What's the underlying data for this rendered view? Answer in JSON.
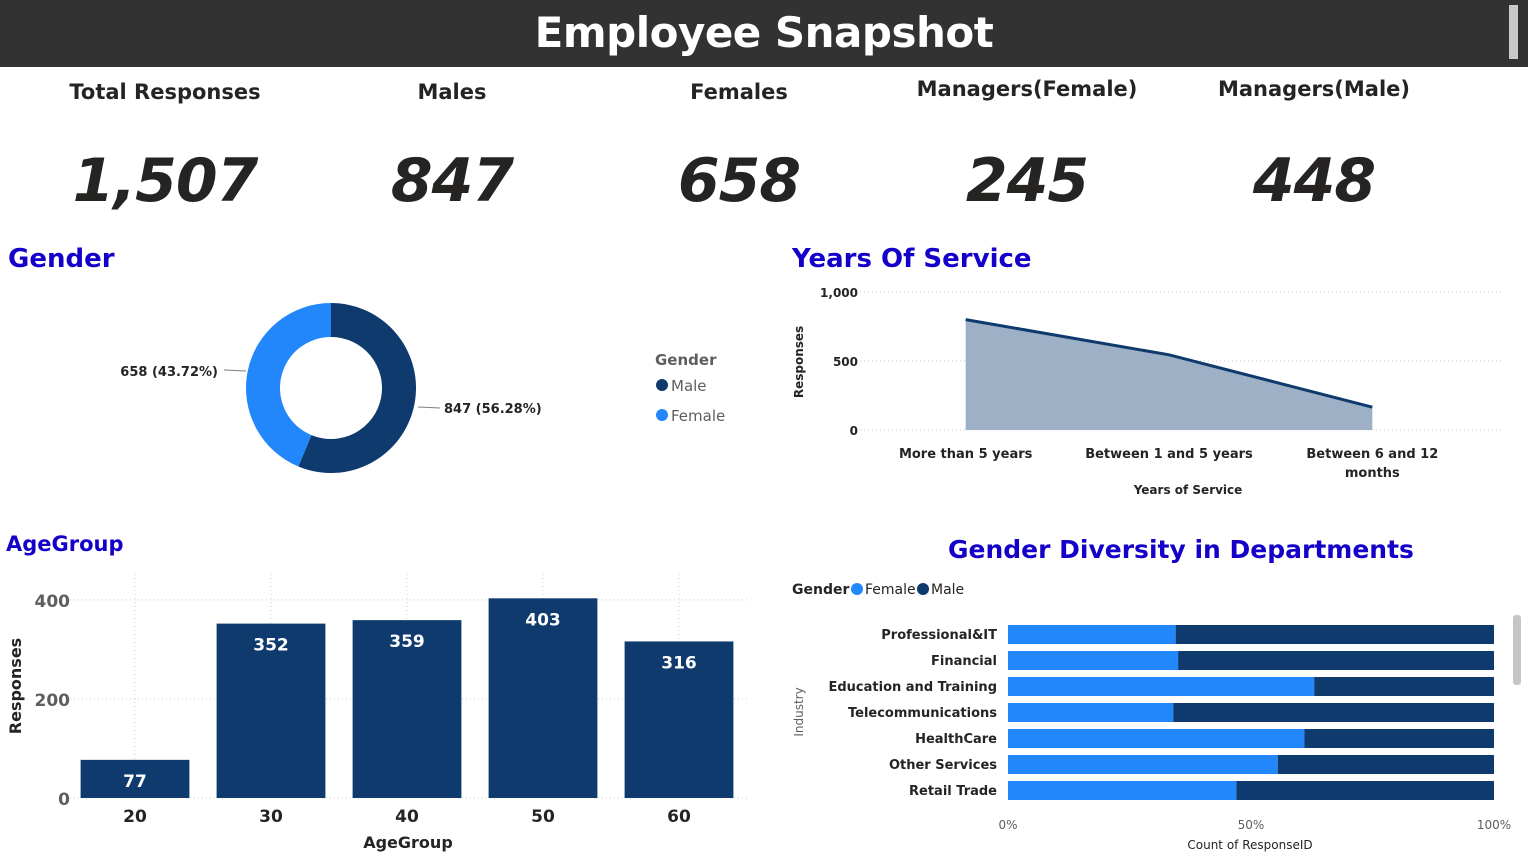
{
  "header": {
    "title": "Employee Snapshot"
  },
  "kpis": [
    {
      "label": "Total Responses",
      "value": "1,507"
    },
    {
      "label": "Males",
      "value": "847"
    },
    {
      "label": "Females",
      "value": "658"
    },
    {
      "label": "Managers(Female)",
      "value": "245"
    },
    {
      "label": "Managers(Male)",
      "value": "448"
    }
  ],
  "gender": {
    "title": "Gender",
    "legend_title": "Gender",
    "male_label": "Male",
    "female_label": "Female",
    "male_value_label": "847 (56.28%)",
    "female_value_label": "658 (43.72%)"
  },
  "years_of_service": {
    "title": "Years Of Service"
  },
  "agegroup": {
    "title": "AgeGroup"
  },
  "diversity": {
    "title": "Gender Diversity in Departments",
    "legend_title": "Gender",
    "female_label": "Female",
    "male_label": "Male"
  },
  "colors": {
    "male": "#0f3a6e",
    "female": "#2187fb",
    "area_fill": "#9eb0c6",
    "title_blue": "#1400c8",
    "header_bg": "#323232"
  },
  "chart_data": [
    {
      "id": "gender",
      "type": "pie",
      "labels": [
        "Male",
        "Female"
      ],
      "values": [
        847,
        658
      ],
      "percent": [
        56.28,
        43.72
      ],
      "title": "Gender",
      "legend_position": "right"
    },
    {
      "id": "years_of_service",
      "type": "area",
      "categories": [
        "More than 5 years",
        "Between 1 and 5 years",
        "Between 6 and 12 months"
      ],
      "values": [
        800,
        545,
        165
      ],
      "title": "Years Of Service",
      "xlabel": "Years of Service",
      "ylabel": "Responses",
      "yticks": [
        "0",
        "500",
        "1,000"
      ],
      "ylim": [
        0,
        1000
      ],
      "grid": true
    },
    {
      "id": "agegroup",
      "type": "bar",
      "categories": [
        "20",
        "30",
        "40",
        "50",
        "60"
      ],
      "values": [
        77,
        352,
        359,
        403,
        316
      ],
      "title": "AgeGroup",
      "xlabel": "AgeGroup",
      "ylabel": "Responses",
      "yticks": [
        "0",
        "200",
        "400"
      ],
      "ylim": [
        0,
        440
      ],
      "grid": true
    },
    {
      "id": "diversity",
      "type": "bar",
      "orientation": "horizontal-stacked-100",
      "title": "Gender Diversity in Departments",
      "categories": [
        "Professional&IT",
        "Financial",
        "Education and Training",
        "Telecommunications",
        "HealthCare",
        "Other Services",
        "Retail Trade"
      ],
      "series": [
        {
          "name": "Female",
          "values": [
            34.5,
            35,
            63,
            34,
            61,
            55.5,
            47
          ]
        },
        {
          "name": "Male",
          "values": [
            65.5,
            65,
            37,
            66,
            39,
            44.5,
            53
          ]
        }
      ],
      "xlabel": "Count of ResponseID",
      "ylabel": "Industry",
      "xticks": [
        "0%",
        "50%",
        "100%"
      ],
      "legend_position": "top-left"
    }
  ]
}
